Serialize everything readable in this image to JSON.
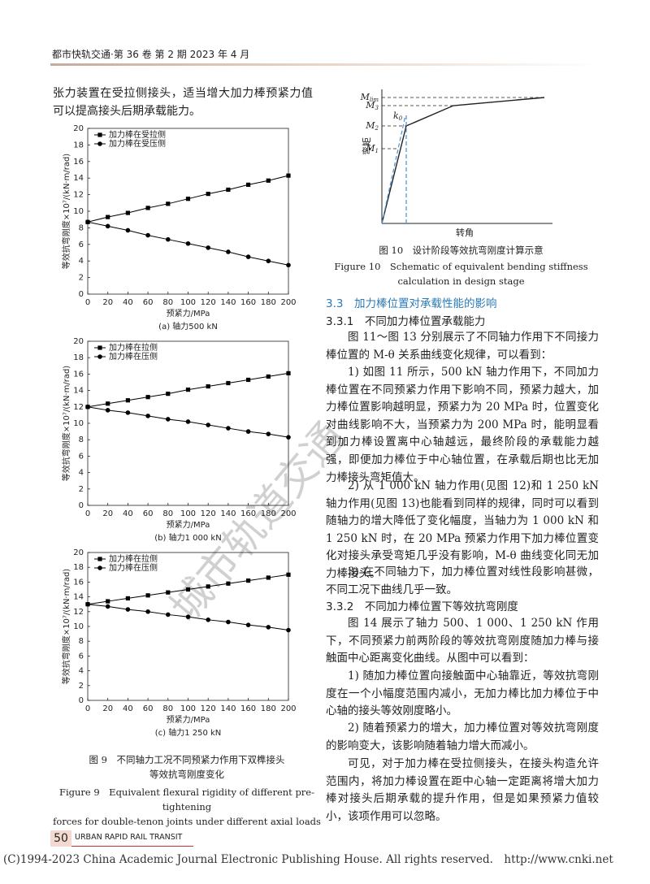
{
  "header": "都市快轨交通·第 36 卷 第 2 期 2023 年 4 月",
  "watermark": "城市轨道交通",
  "left_text": "张力装置在受拉侧接头，适当增大加力棒预紧力值可以提高接头后期承载能力。",
  "chart_data": [
    {
      "type": "line",
      "caption": "(a) 轴力500 kN",
      "x_label": "预紧力/MPa",
      "y_label": "等效抗弯刚度×10⁷/(kN·m/rad)",
      "x": [
        0,
        20,
        40,
        60,
        80,
        100,
        120,
        140,
        160,
        180,
        200
      ],
      "xlim": [
        0,
        200
      ],
      "xticks": [
        0,
        20,
        40,
        60,
        80,
        100,
        120,
        140,
        160,
        180,
        200
      ],
      "ylim": [
        0,
        20
      ],
      "yticks": [
        0,
        2,
        4,
        6,
        8,
        10,
        12,
        14,
        16,
        18,
        20
      ],
      "legend": "upper-left",
      "series": [
        {
          "name": "加力棒在受拉侧",
          "color": "#000000",
          "marker": "square",
          "values": [
            8.7,
            9.3,
            9.8,
            10.4,
            10.9,
            11.5,
            12.1,
            12.6,
            13.2,
            13.7,
            14.3
          ]
        },
        {
          "name": "加力棒在受压侧",
          "color": "#000000",
          "marker": "circle",
          "values": [
            8.7,
            8.2,
            7.7,
            7.1,
            6.6,
            6.1,
            5.6,
            5.1,
            4.5,
            4.0,
            3.5
          ]
        }
      ]
    },
    {
      "type": "line",
      "caption": "(b) 轴力1 000 kN",
      "x_label": "预紧力/MPa",
      "y_label": "等效抗弯刚度×10⁷/(kN·m/rad)",
      "x": [
        0,
        20,
        40,
        60,
        80,
        100,
        120,
        140,
        160,
        180,
        200
      ],
      "xlim": [
        0,
        200
      ],
      "xticks": [
        0,
        20,
        40,
        60,
        80,
        100,
        120,
        140,
        160,
        180,
        200
      ],
      "ylim": [
        0,
        20
      ],
      "yticks": [
        0,
        2,
        4,
        6,
        8,
        10,
        12,
        14,
        16,
        18,
        20
      ],
      "legend": "upper-left",
      "series": [
        {
          "name": "加力棒在拉侧",
          "color": "#000000",
          "marker": "square",
          "values": [
            12.0,
            12.4,
            12.8,
            13.2,
            13.6,
            14.1,
            14.5,
            14.9,
            15.3,
            15.7,
            16.1
          ]
        },
        {
          "name": "加力棒在压侧",
          "color": "#000000",
          "marker": "circle",
          "values": [
            12.0,
            11.6,
            11.3,
            10.9,
            10.5,
            10.2,
            9.8,
            9.4,
            9.0,
            8.7,
            8.3
          ]
        }
      ]
    },
    {
      "type": "line",
      "caption": "(c) 轴力1 250 kN",
      "x_label": "预紧力/MPa",
      "y_label": "等效抗弯刚度×10⁷/(kN·m/rad)",
      "x": [
        0,
        20,
        40,
        60,
        80,
        100,
        120,
        140,
        160,
        180,
        200
      ],
      "xlim": [
        0,
        200
      ],
      "xticks": [
        0,
        20,
        40,
        60,
        80,
        100,
        120,
        140,
        160,
        180,
        200
      ],
      "ylim": [
        0,
        20
      ],
      "yticks": [
        0,
        2,
        4,
        6,
        8,
        10,
        12,
        14,
        16,
        18,
        20
      ],
      "legend": "upper-left",
      "series": [
        {
          "name": "加力棒在拉侧",
          "color": "#000000",
          "marker": "square",
          "values": [
            13.0,
            13.4,
            13.8,
            14.2,
            14.6,
            15.0,
            15.4,
            15.8,
            16.2,
            16.6,
            17.0
          ]
        },
        {
          "name": "加力棒在压侧",
          "color": "#000000",
          "marker": "circle",
          "values": [
            13.0,
            12.7,
            12.3,
            12.0,
            11.6,
            11.3,
            10.9,
            10.6,
            10.2,
            9.9,
            9.5
          ]
        }
      ]
    }
  ],
  "figure9": {
    "caption_zh": [
      "图 9　不同轴力工况不同预紧力作用下双榫接头",
      "等效抗弯刚度变化"
    ],
    "caption_en": [
      "Figure 9　Equivalent flexural rigidity of different pre-tightening",
      "forces for double-tenon joints under different axial loads"
    ]
  },
  "figure10": {
    "y_label": "弯矩",
    "x_label": "转角",
    "levels": [
      {
        "main": "M",
        "sub": "lim"
      },
      {
        "main": "M",
        "sub": "3"
      },
      {
        "main": "M",
        "sub": "2"
      },
      {
        "main": "M",
        "sub": "1"
      }
    ],
    "slope": {
      "main": "k",
      "sub": "0"
    },
    "caption_zh": "图 10　设计阶段等效抗弯刚度计算示意",
    "caption_en": [
      "Figure 10　Schematic of equivalent bending stiffness",
      "calculation in design stage"
    ]
  },
  "sections": [
    {
      "heading": "3.3　加力棒位置对承载性能的影响"
    },
    {
      "heading": "3.3.1　不同加力棒位置承载能力"
    },
    {
      "paragraph": "图 11～图 13 分别展示了不同轴力作用下不同接力棒位置的 M-θ 关系曲线变化规律，可以看到："
    },
    {
      "paragraph": "1) 如图 11 所示，500 kN 轴力作用下，不同加力棒位置在不同预紧力作用下影响不同，预紧力越大，加力棒位置影响越明显，预紧力为 20 MPa 时，位置变化对曲线影响不大，当预紧力为 200 MPa 时，能明显看到加力棒设置离中心轴越远，最终阶段的承载能力越强，即便加力棒位于中心轴位置，在承载后期也比无加力棒接头弯矩值大。"
    },
    {
      "paragraph": "2) 从 1 000 kN 轴力作用(见图 12)和 1 250 kN 轴力作用(见图 13)也能看到同样的规律，同时可以看到随轴力的增大降低了变化幅度，当轴力为 1 000 kN 和 1 250 kN 时，在 20 MPa 预紧力作用下加力棒位置变化对接头承受弯矩几乎没有影响，M-θ 曲线变化同无加力棒接头。"
    },
    {
      "paragraph": "3) 在不同轴力下，加力棒位置对线性段影响甚微，不同工况下曲线几乎一致。"
    },
    {
      "heading": "3.3.2　不同加力棒位置下等效抗弯刚度"
    },
    {
      "paragraph": "图 14 展示了轴力 500、1 000、1 250 kN 作用下，不同预紧力前两阶段的等效抗弯刚度随加力棒与接触面中心距离变化曲线。从图中可以看到："
    },
    {
      "paragraph": "1) 随加力棒位置向接触面中心轴靠近，等效抗弯刚度在一个小幅度范围内减小，无加力棒比加力棒位于中心轴的接头等效刚度略小。"
    },
    {
      "paragraph": "2) 随着预紧力的增大，加力棒位置对等效抗弯刚度的影响变大，该影响随着轴力增大而减小。"
    },
    {
      "paragraph": "可见，对于加力棒在受拉侧接头，在接头构造允许范围内，将加力棒设置在距中心轴一定距离将增大加力棒对接头后期承载的提升作用，但是如果预紧力值较小，该项作用可以忽略。"
    }
  ],
  "footer": {
    "page": "50",
    "journal": "URBAN RAPID RAIL TRANSIT",
    "copyright": "(C)1994-2023 China Academic Journal Electronic Publishing House. All rights reserved.　http://www.cnki.net"
  }
}
